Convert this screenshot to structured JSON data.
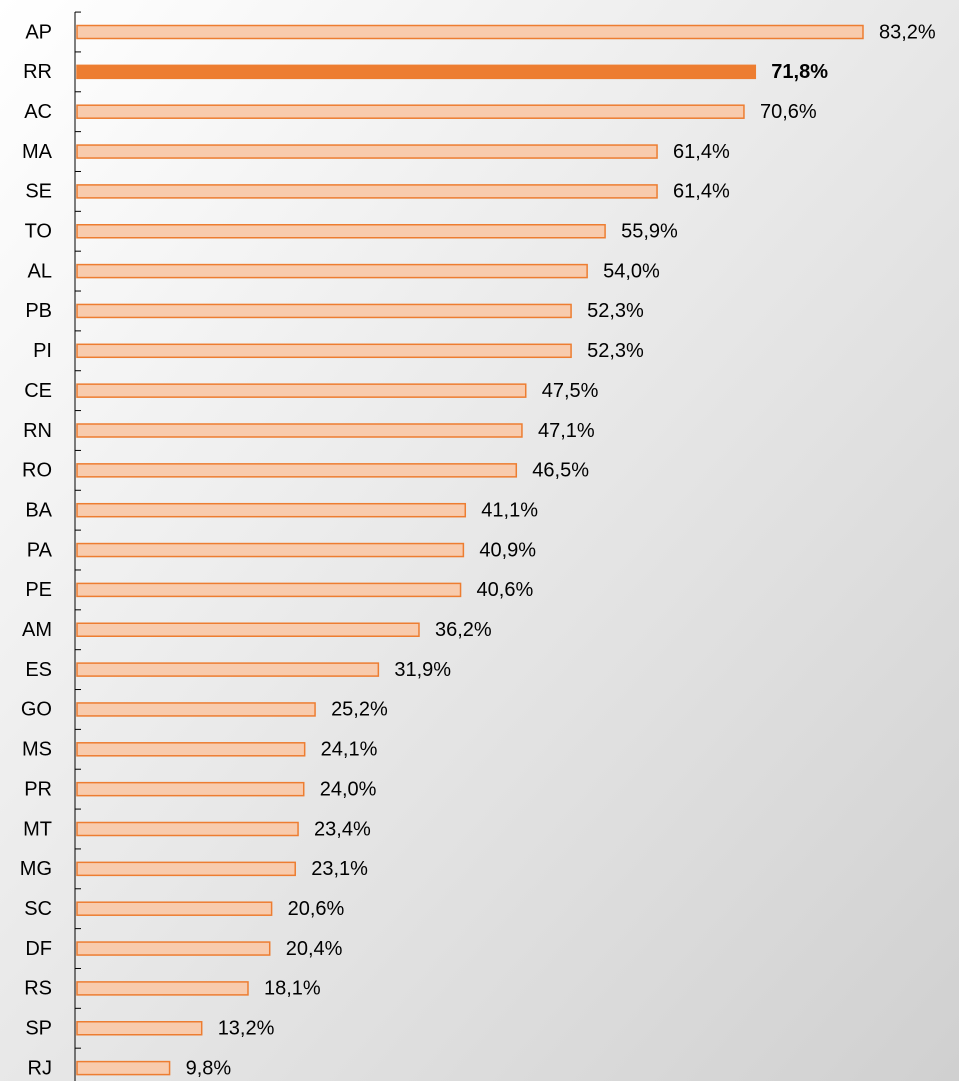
{
  "chart_data": {
    "type": "bar",
    "orientation": "horizontal",
    "categories": [
      "AP",
      "RR",
      "AC",
      "MA",
      "SE",
      "TO",
      "AL",
      "PB",
      "PI",
      "CE",
      "RN",
      "RO",
      "BA",
      "PA",
      "PE",
      "AM",
      "ES",
      "GO",
      "MS",
      "PR",
      "MT",
      "MG",
      "SC",
      "DF",
      "RS",
      "SP",
      "RJ"
    ],
    "values": [
      83.2,
      71.8,
      70.6,
      61.4,
      61.4,
      55.9,
      54.0,
      52.3,
      52.3,
      47.5,
      47.1,
      46.5,
      41.1,
      40.9,
      40.6,
      36.2,
      31.9,
      25.2,
      24.1,
      24.0,
      23.4,
      23.1,
      20.6,
      20.4,
      18.1,
      13.2,
      9.8
    ],
    "value_labels": [
      "83,2%",
      "71,8%",
      "70,6%",
      "61,4%",
      "61,4%",
      "55,9%",
      "54,0%",
      "52,3%",
      "52,3%",
      "47,5%",
      "47,1%",
      "46,5%",
      "41,1%",
      "40,9%",
      "40,6%",
      "36,2%",
      "31,9%",
      "25,2%",
      "24,1%",
      "24,0%",
      "23,4%",
      "23,1%",
      "20,6%",
      "20,4%",
      "18,1%",
      "13,2%",
      "9,8%"
    ],
    "edge_color": "#ED7D31",
    "colors": [
      "#F8CBAD",
      "#ED7D31",
      "#F8CBAD",
      "#F8CBAD",
      "#F8CBAD",
      "#F8CBAD",
      "#F8CBAD",
      "#F8CBAD",
      "#F8CBAD",
      "#F8CBAD",
      "#F8CBAD",
      "#F8CBAD",
      "#F8CBAD",
      "#F8CBAD",
      "#F8CBAD",
      "#F8CBAD",
      "#F8CBAD",
      "#F8CBAD",
      "#F8CBAD",
      "#F8CBAD",
      "#F8CBAD",
      "#F8CBAD",
      "#F8CBAD",
      "#F8CBAD",
      "#F8CBAD",
      "#F8CBAD",
      "#F8CBAD"
    ],
    "xlim": [
      0,
      93
    ]
  }
}
